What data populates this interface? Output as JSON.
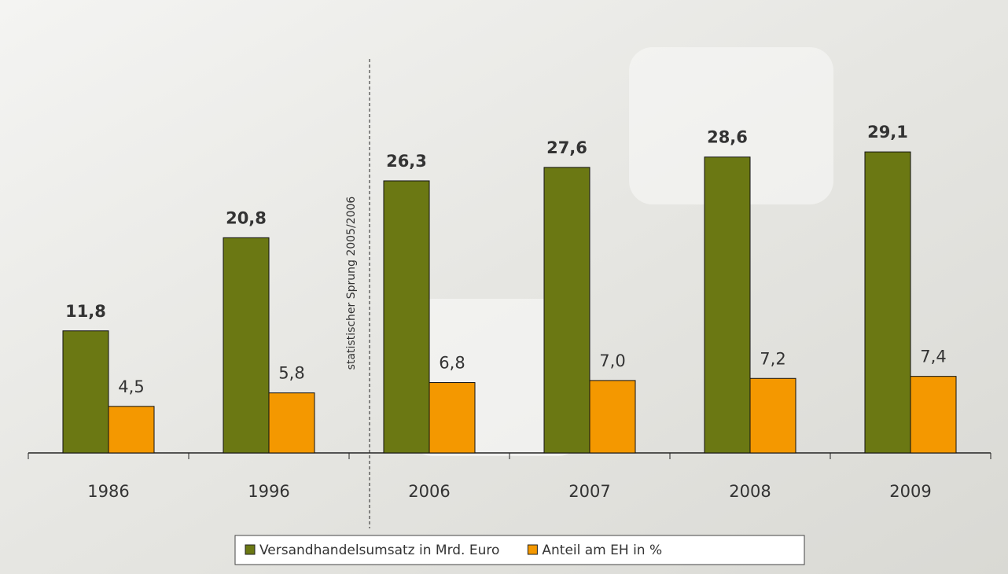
{
  "chart_data": {
    "type": "bar",
    "categories": [
      "1986",
      "1996",
      "2006",
      "2007",
      "2008",
      "2009"
    ],
    "series": [
      {
        "name": "Versandhandelsumsatz in Mrd. Euro",
        "color": "#6b7813",
        "values": [
          11.8,
          20.8,
          26.3,
          27.6,
          28.6,
          29.1
        ],
        "value_labels": [
          "11,8",
          "20,8",
          "26,3",
          "27,6",
          "28,6",
          "29,1"
        ]
      },
      {
        "name": "Anteil am EH in %",
        "color": "#f49800",
        "values": [
          4.5,
          5.8,
          6.8,
          7.0,
          7.2,
          7.4
        ],
        "value_labels": [
          "4,5",
          "5,8",
          "6,8",
          "7,0",
          "7,2",
          "7,4"
        ]
      }
    ],
    "ylim": [
      0,
      32
    ],
    "annotation": "statistischer Sprung 2005/2006"
  }
}
